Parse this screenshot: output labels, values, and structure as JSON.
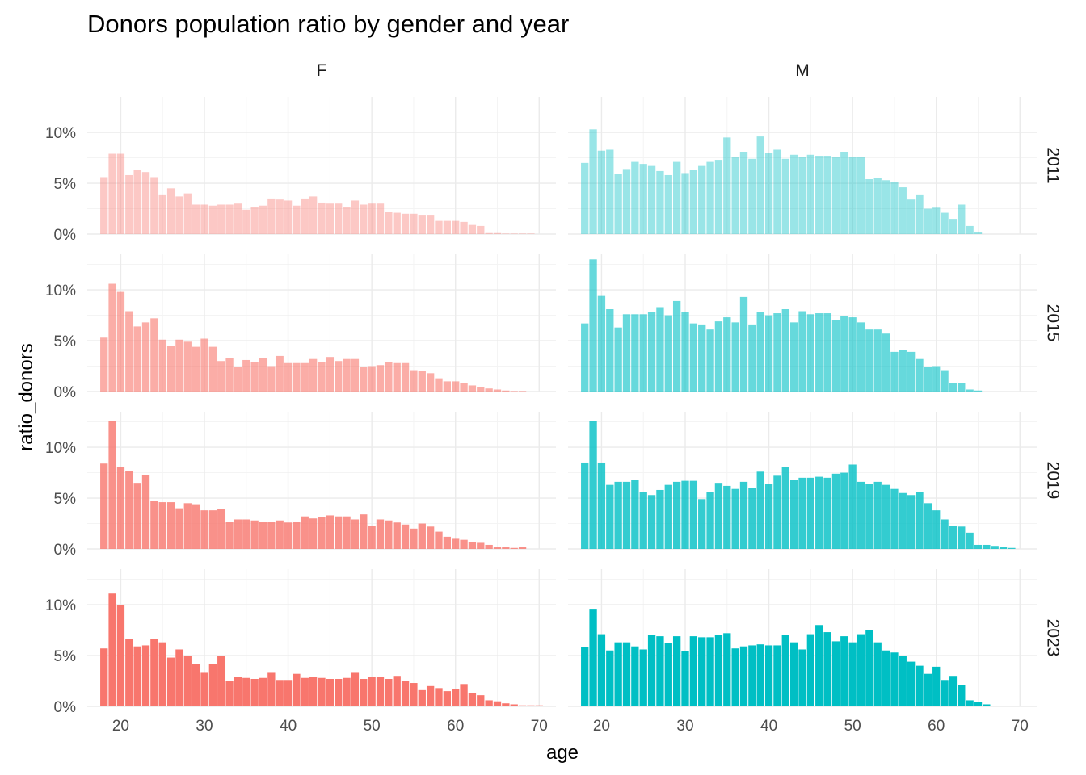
{
  "chart_data": {
    "type": "bar",
    "title": "Donors population ratio by gender and year",
    "xlabel": "age",
    "ylabel": "ratio_donors",
    "x_ticks": [
      20,
      30,
      40,
      50,
      60,
      70
    ],
    "y_ticks": [
      "0%",
      "5%",
      "10%"
    ],
    "xlim": [
      16,
      72
    ],
    "ylim": [
      0,
      13.5
    ],
    "columns": [
      "F",
      "M"
    ],
    "rows": [
      "2011",
      "2015",
      "2019",
      "2023"
    ],
    "colors": {
      "F": "#F8766D",
      "M": "#00BFC4"
    },
    "opacity_by_year": {
      "2011": 0.4,
      "2015": 0.6,
      "2019": 0.8,
      "2023": 1.0
    },
    "age_start": 18,
    "panels": [
      {
        "gender": "F",
        "year": "2011",
        "values": [
          5.6,
          7.9,
          7.9,
          5.8,
          6.3,
          6.1,
          5.6,
          3.9,
          4.5,
          3.7,
          4.0,
          2.9,
          2.9,
          2.8,
          2.9,
          2.9,
          3.0,
          2.4,
          2.7,
          2.8,
          3.5,
          3.4,
          3.3,
          2.8,
          3.5,
          3.7,
          3.1,
          3.0,
          3.0,
          2.7,
          3.3,
          2.9,
          3.0,
          3.0,
          2.2,
          2.1,
          2.0,
          2.0,
          1.9,
          1.9,
          1.3,
          1.3,
          1.3,
          1.2,
          0.9,
          0.8,
          0.1,
          0.1,
          0.05,
          0.05,
          0.05,
          0.05,
          0.0
        ]
      },
      {
        "gender": "M",
        "year": "2011",
        "values": [
          7.0,
          10.3,
          8.2,
          8.3,
          5.9,
          6.4,
          7.1,
          6.9,
          6.7,
          6.2,
          5.8,
          7.1,
          6.0,
          6.3,
          6.7,
          7.1,
          7.3,
          9.5,
          7.6,
          8.1,
          7.4,
          9.6,
          8.0,
          8.3,
          7.4,
          7.8,
          7.6,
          7.8,
          7.7,
          7.7,
          7.6,
          8.1,
          7.6,
          7.6,
          5.4,
          5.5,
          5.3,
          5.1,
          4.6,
          3.4,
          3.9,
          2.5,
          2.6,
          2.1,
          1.5,
          2.9,
          0.8,
          0.2,
          0.0
        ]
      },
      {
        "gender": "F",
        "year": "2015",
        "values": [
          5.3,
          10.6,
          9.8,
          7.9,
          6.4,
          6.8,
          7.2,
          5.1,
          4.5,
          5.1,
          4.9,
          4.4,
          5.2,
          4.4,
          3.0,
          3.3,
          2.4,
          3.1,
          2.9,
          3.3,
          2.5,
          3.5,
          2.8,
          2.8,
          2.8,
          3.2,
          2.9,
          3.4,
          3.0,
          3.2,
          3.2,
          2.4,
          2.5,
          2.6,
          2.9,
          2.8,
          2.8,
          2.1,
          2.0,
          1.8,
          1.3,
          1.0,
          1.0,
          0.8,
          0.6,
          0.4,
          0.3,
          0.2,
          0.1,
          0.05,
          0.05,
          0.0
        ]
      },
      {
        "gender": "M",
        "year": "2015",
        "values": [
          6.7,
          13.0,
          9.4,
          8.1,
          6.3,
          7.6,
          7.6,
          7.6,
          7.8,
          8.3,
          7.5,
          8.9,
          7.8,
          6.7,
          6.6,
          6.1,
          6.9,
          7.3,
          6.8,
          9.3,
          6.6,
          7.8,
          7.5,
          7.7,
          8.1,
          6.8,
          7.9,
          7.6,
          7.7,
          7.7,
          7.0,
          7.4,
          7.3,
          6.8,
          6.1,
          6.1,
          5.7,
          3.9,
          4.1,
          3.9,
          3.2,
          2.4,
          2.5,
          2.1,
          0.8,
          0.8,
          0.2,
          0.1,
          0.0
        ]
      },
      {
        "gender": "F",
        "year": "2019",
        "values": [
          8.4,
          12.6,
          8.1,
          7.7,
          6.5,
          7.3,
          4.7,
          4.6,
          4.6,
          4.0,
          4.5,
          4.4,
          3.8,
          3.8,
          3.9,
          2.7,
          2.9,
          2.9,
          2.8,
          2.7,
          2.7,
          2.8,
          2.6,
          2.7,
          3.2,
          3.0,
          3.1,
          3.3,
          3.2,
          3.2,
          2.9,
          3.4,
          2.3,
          2.9,
          2.8,
          2.6,
          2.4,
          2.0,
          2.5,
          2.2,
          1.7,
          1.2,
          1.0,
          0.9,
          0.7,
          0.6,
          0.4,
          0.2,
          0.2,
          0.1,
          0.2
        ]
      },
      {
        "gender": "M",
        "year": "2019",
        "values": [
          8.5,
          12.6,
          8.5,
          6.3,
          6.6,
          6.6,
          6.8,
          5.6,
          5.3,
          5.8,
          6.3,
          6.6,
          6.7,
          6.7,
          4.9,
          5.6,
          6.5,
          6.2,
          5.9,
          6.6,
          6.0,
          7.6,
          6.4,
          7.2,
          8.1,
          6.8,
          7.0,
          7.0,
          7.1,
          7.0,
          7.4,
          7.5,
          8.3,
          6.6,
          6.4,
          6.6,
          6.3,
          5.9,
          5.5,
          5.3,
          5.6,
          4.5,
          3.8,
          2.9,
          2.3,
          2.2,
          1.6,
          0.4,
          0.4,
          0.3,
          0.2,
          0.1
        ]
      },
      {
        "gender": "F",
        "year": "2023",
        "values": [
          5.7,
          11.1,
          10.0,
          6.6,
          5.9,
          6.0,
          6.6,
          6.3,
          4.8,
          5.6,
          5.0,
          4.2,
          3.3,
          4.2,
          5.0,
          2.5,
          2.9,
          2.8,
          2.7,
          2.8,
          3.3,
          2.6,
          2.6,
          3.2,
          2.8,
          2.9,
          2.8,
          2.7,
          2.7,
          2.8,
          3.3,
          2.7,
          2.9,
          2.9,
          2.7,
          3.0,
          2.5,
          2.3,
          1.6,
          2.0,
          1.8,
          1.5,
          1.7,
          2.2,
          1.3,
          1.1,
          0.6,
          0.5,
          0.3,
          0.2,
          0.1,
          0.1,
          0.1
        ]
      },
      {
        "gender": "M",
        "year": "2023",
        "values": [
          5.8,
          9.6,
          7.1,
          5.5,
          6.3,
          6.3,
          5.9,
          5.6,
          7.0,
          6.9,
          6.2,
          6.9,
          5.4,
          6.9,
          6.8,
          6.8,
          7.0,
          7.2,
          5.7,
          5.9,
          6.0,
          6.1,
          6.0,
          6.0,
          7.0,
          6.3,
          5.6,
          7.1,
          8.0,
          7.3,
          6.4,
          6.9,
          6.3,
          7.1,
          7.5,
          6.3,
          5.5,
          5.3,
          5.0,
          4.4,
          4.0,
          3.2,
          3.9,
          2.6,
          3.0,
          2.1,
          0.6,
          0.4,
          0.2,
          0.05,
          0.0
        ]
      }
    ]
  }
}
